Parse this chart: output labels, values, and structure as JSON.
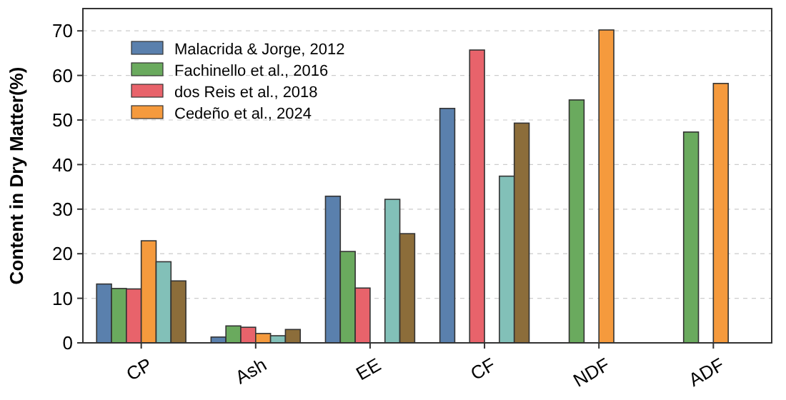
{
  "chart_data": {
    "type": "bar",
    "ylabel": "Content in Dry Matter(%)",
    "categories": [
      "CP",
      "Ash",
      "EE",
      "CF",
      "NDF",
      "ADF"
    ],
    "series": [
      {
        "name": "Malacrida & Jorge, 2012",
        "color": "#5a80ad",
        "values": [
          13.2,
          1.3,
          32.9,
          52.6,
          null,
          null
        ]
      },
      {
        "name": "Fachinello et al., 2016",
        "color": "#6aaa5e",
        "values": [
          12.2,
          3.8,
          20.5,
          null,
          54.5,
          47.3
        ]
      },
      {
        "name": "dos Reis et al., 2018",
        "color": "#e8636b",
        "values": [
          12.1,
          3.5,
          12.3,
          65.7,
          null,
          null
        ]
      },
      {
        "name": "Cedeño et al., 2024",
        "color": "#f59a3d",
        "values": [
          22.9,
          2.1,
          null,
          null,
          70.2,
          58.2
        ]
      },
      {
        "color": "#82c0b8",
        "values": [
          18.2,
          1.6,
          32.2,
          37.4,
          null,
          null
        ]
      },
      {
        "color": "#8c6d3a",
        "values": [
          13.9,
          3.0,
          24.5,
          49.3,
          null,
          null
        ]
      }
    ],
    "ylim": [
      0,
      75
    ],
    "yticks": [
      0,
      10,
      20,
      30,
      40,
      50,
      60,
      70
    ],
    "grid": "y",
    "legend": "top left"
  }
}
